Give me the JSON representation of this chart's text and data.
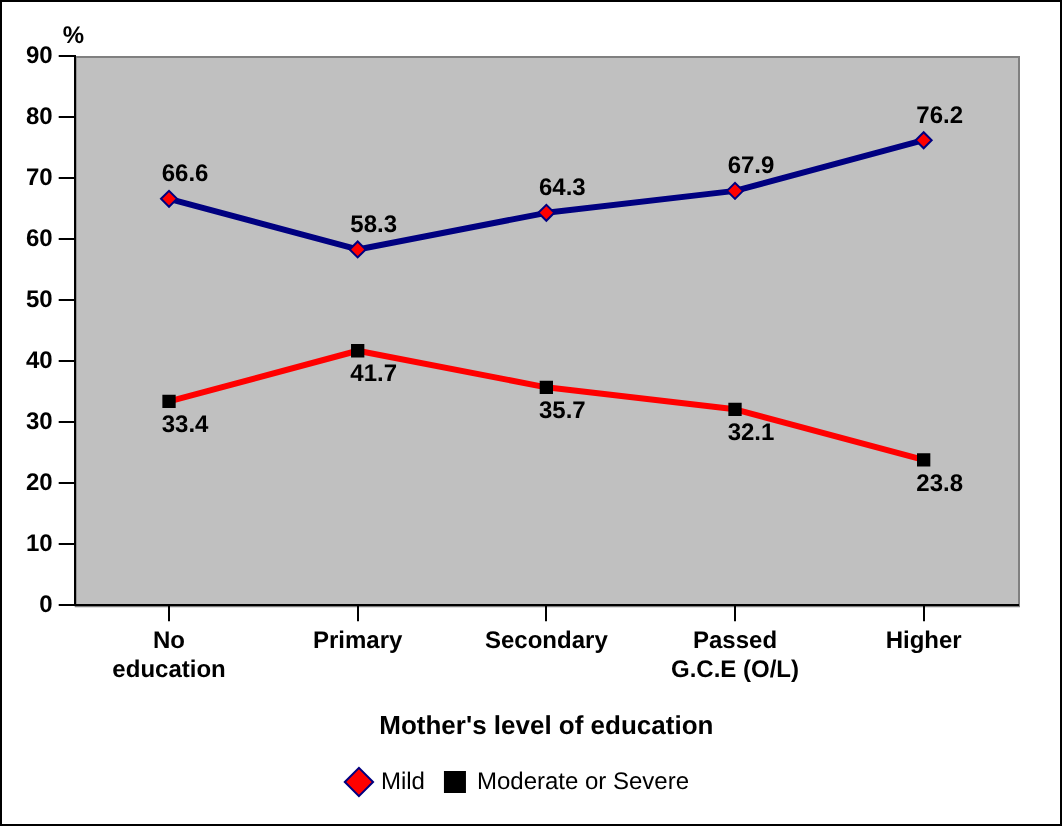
{
  "chart_data": {
    "type": "line",
    "xlabel": "Mother's level of education",
    "ylabel": "%",
    "categories": [
      "No education",
      "Primary",
      "Secondary",
      "Passed G.C.E (O/L)",
      "Higher"
    ],
    "series": [
      {
        "name": "Mild",
        "color": "#000080",
        "marker": "diamond",
        "values": [
          66.6,
          58.3,
          64.3,
          67.9,
          76.2
        ]
      },
      {
        "name": "Moderate or Severe",
        "color": "#ff0000",
        "marker": "square",
        "values": [
          33.4,
          41.7,
          35.7,
          32.1,
          23.8
        ]
      }
    ],
    "ylim": [
      0,
      90
    ],
    "yticks": [
      0,
      10,
      20,
      30,
      40,
      50,
      60,
      70,
      80,
      90
    ],
    "grid": false,
    "legend": "bottom",
    "data_labels": true
  }
}
